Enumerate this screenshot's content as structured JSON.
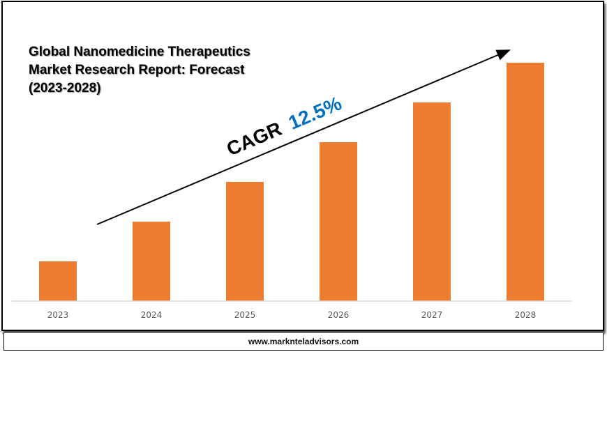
{
  "chart_data": {
    "type": "bar",
    "title": "Global Nanomedicine Therapeutics Market Research Report: Forecast (2023-2028)",
    "categories": [
      "2023",
      "2024",
      "2025",
      "2026",
      "2027",
      "2028"
    ],
    "values": [
      1.0,
      2.0,
      3.0,
      4.0,
      5.0,
      6.0
    ],
    "values_note_unit": "relative (no axis values printed)",
    "ylim": [
      0,
      6.1
    ],
    "grid": false,
    "bar_color": "#ED7D31",
    "annotation": {
      "label": "CAGR",
      "value": "12.5%",
      "value_color": "#0070C0"
    }
  },
  "footer": {
    "website": "www.markntel advisors.com"
  }
}
